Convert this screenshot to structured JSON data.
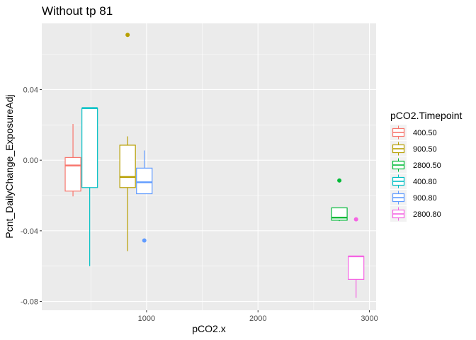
{
  "chart_data": {
    "type": "boxplot",
    "title": "Without tp 81",
    "xlabel": "pCO2.x",
    "ylabel": "Pcnt_DailyChange_ExposureAdj",
    "xlim": [
      60,
      3060
    ],
    "ylim": [
      -0.085,
      0.0775
    ],
    "x_ticks": [
      1000,
      2000,
      3000
    ],
    "x_tick_labels": [
      "1000",
      "2000",
      "3000"
    ],
    "y_ticks": [
      -0.08,
      -0.04,
      0.0,
      0.04
    ],
    "y_tick_labels": [
      "-0.08",
      "-0.04",
      "0.00",
      "0.04"
    ],
    "grid": true,
    "legend": {
      "title": "pCO2.Timepoint",
      "position": "right"
    },
    "series": [
      {
        "name": "400.50",
        "color": "#F8766D",
        "x": 340,
        "box_width": 140,
        "whisker_low": -0.0205,
        "q1": -0.0175,
        "median": -0.003,
        "q3": 0.0015,
        "whisker_high": 0.0205,
        "outliers": []
      },
      {
        "name": "900.50",
        "color": "#B79F00",
        "x": 830,
        "box_width": 140,
        "whisker_low": -0.0515,
        "q1": -0.0155,
        "median": -0.0095,
        "q3": 0.0085,
        "whisker_high": 0.0135,
        "outliers": [
          0.071
        ]
      },
      {
        "name": "2800.50",
        "color": "#00BA38",
        "x": 2730,
        "box_width": 140,
        "whisker_low": -0.0345,
        "q1": -0.034,
        "median": -0.0325,
        "q3": -0.027,
        "whisker_high": -0.027,
        "outliers": [
          -0.0115
        ]
      },
      {
        "name": "400.80",
        "color": "#00BFC4",
        "x": 490,
        "box_width": 140,
        "whisker_low": -0.06,
        "q1": -0.0155,
        "median": 0.0295,
        "q3": 0.0295,
        "whisker_high": 0.0295,
        "outliers": []
      },
      {
        "name": "900.80",
        "color": "#619CFF",
        "x": 980,
        "box_width": 140,
        "whisker_low": -0.019,
        "q1": -0.019,
        "median": -0.0125,
        "q3": -0.0045,
        "whisker_high": 0.0055,
        "outliers": [
          -0.0455
        ]
      },
      {
        "name": "2800.80",
        "color": "#F564E3",
        "x": 2880,
        "box_width": 140,
        "whisker_low": -0.078,
        "q1": -0.0675,
        "median": -0.0545,
        "q3": -0.0545,
        "whisker_high": -0.0545,
        "outliers": [
          -0.0335
        ]
      }
    ]
  }
}
